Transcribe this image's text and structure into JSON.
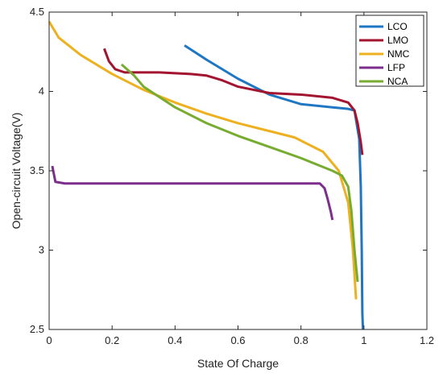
{
  "chart_data": {
    "type": "line",
    "title": "",
    "xlabel": "State Of Charge",
    "ylabel": "Open-circuit Voltage(V)",
    "xlim": [
      0,
      1.2
    ],
    "ylim": [
      2.5,
      4.5
    ],
    "x_ticks": [
      0,
      0.2,
      0.4,
      0.6,
      0.8,
      1,
      1.2
    ],
    "x_tick_labels": [
      "0",
      "0.2",
      "0.4",
      "0.6",
      "0.8",
      "1",
      "1.2"
    ],
    "y_ticks": [
      2.5,
      3,
      3.5,
      4,
      4.5
    ],
    "y_tick_labels": [
      "2.5",
      "3",
      "3.5",
      "4",
      "4.5"
    ],
    "grid": false,
    "legend_position": "top-right",
    "series": [
      {
        "name": "LCO",
        "color": "#1f77c4",
        "points": [
          [
            0.43,
            4.29
          ],
          [
            0.5,
            4.2
          ],
          [
            0.6,
            4.08
          ],
          [
            0.7,
            3.98
          ],
          [
            0.8,
            3.92
          ],
          [
            0.9,
            3.9
          ],
          [
            0.95,
            3.89
          ],
          [
            0.97,
            3.88
          ],
          [
            0.985,
            3.7
          ],
          [
            0.99,
            3.4
          ],
          [
            0.993,
            3.0
          ],
          [
            0.995,
            2.6
          ],
          [
            0.997,
            2.5
          ]
        ]
      },
      {
        "name": "LMO",
        "color": "#a2142f",
        "points": [
          [
            0.175,
            4.27
          ],
          [
            0.19,
            4.19
          ],
          [
            0.21,
            4.14
          ],
          [
            0.24,
            4.12
          ],
          [
            0.35,
            4.12
          ],
          [
            0.45,
            4.11
          ],
          [
            0.5,
            4.1
          ],
          [
            0.55,
            4.07
          ],
          [
            0.6,
            4.03
          ],
          [
            0.7,
            3.99
          ],
          [
            0.8,
            3.98
          ],
          [
            0.9,
            3.96
          ],
          [
            0.95,
            3.93
          ],
          [
            0.97,
            3.88
          ],
          [
            0.98,
            3.8
          ],
          [
            0.99,
            3.68
          ],
          [
            0.995,
            3.6
          ]
        ]
      },
      {
        "name": "NMC",
        "color": "#edb120",
        "points": [
          [
            0.0,
            4.44
          ],
          [
            0.03,
            4.34
          ],
          [
            0.1,
            4.23
          ],
          [
            0.2,
            4.11
          ],
          [
            0.3,
            4.01
          ],
          [
            0.4,
            3.93
          ],
          [
            0.5,
            3.86
          ],
          [
            0.6,
            3.8
          ],
          [
            0.7,
            3.75
          ],
          [
            0.78,
            3.71
          ],
          [
            0.87,
            3.62
          ],
          [
            0.92,
            3.5
          ],
          [
            0.95,
            3.3
          ],
          [
            0.965,
            3.0
          ],
          [
            0.975,
            2.69
          ]
        ]
      },
      {
        "name": "LFP",
        "color": "#7e2f8e",
        "points": [
          [
            0.01,
            3.53
          ],
          [
            0.02,
            3.43
          ],
          [
            0.05,
            3.42
          ],
          [
            0.2,
            3.42
          ],
          [
            0.4,
            3.42
          ],
          [
            0.6,
            3.42
          ],
          [
            0.8,
            3.42
          ],
          [
            0.86,
            3.42
          ],
          [
            0.875,
            3.39
          ],
          [
            0.885,
            3.32
          ],
          [
            0.895,
            3.24
          ],
          [
            0.9,
            3.19
          ]
        ]
      },
      {
        "name": "NCA",
        "color": "#77ac30",
        "points": [
          [
            0.23,
            4.17
          ],
          [
            0.27,
            4.1
          ],
          [
            0.3,
            4.03
          ],
          [
            0.4,
            3.9
          ],
          [
            0.5,
            3.8
          ],
          [
            0.6,
            3.72
          ],
          [
            0.7,
            3.65
          ],
          [
            0.8,
            3.58
          ],
          [
            0.9,
            3.5
          ],
          [
            0.93,
            3.47
          ],
          [
            0.95,
            3.4
          ],
          [
            0.96,
            3.25
          ],
          [
            0.97,
            3.0
          ],
          [
            0.98,
            2.8
          ]
        ]
      }
    ]
  }
}
